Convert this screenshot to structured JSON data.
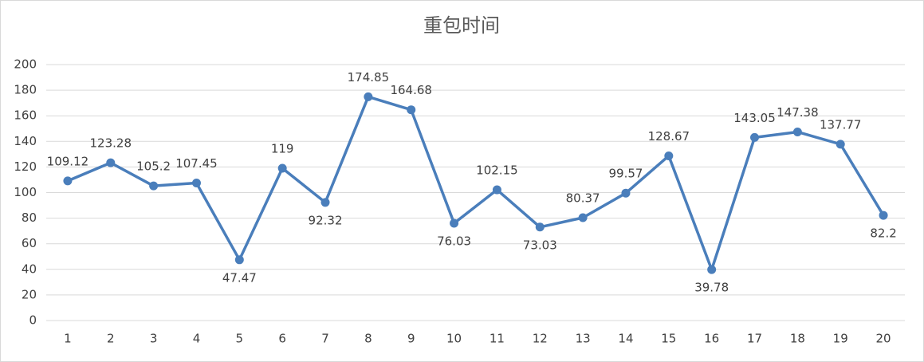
{
  "chart_data": {
    "type": "line",
    "title": "重包时间",
    "categories": [
      "1",
      "2",
      "3",
      "4",
      "5",
      "6",
      "7",
      "8",
      "9",
      "10",
      "11",
      "12",
      "13",
      "14",
      "15",
      "16",
      "17",
      "18",
      "19",
      "20"
    ],
    "series": [
      {
        "color": "#4a7ebb",
        "values": [
          109.12,
          123.28,
          105.2,
          107.45,
          47.47,
          119,
          92.32,
          174.85,
          164.68,
          76.03,
          102.15,
          73.03,
          80.37,
          99.57,
          128.67,
          39.78,
          143.05,
          147.38,
          137.77,
          82.2
        ]
      }
    ],
    "ylim": [
      0,
      200
    ],
    "yticks": [
      0,
      20,
      40,
      60,
      80,
      100,
      120,
      140,
      160,
      180,
      200
    ],
    "grid": true
  }
}
